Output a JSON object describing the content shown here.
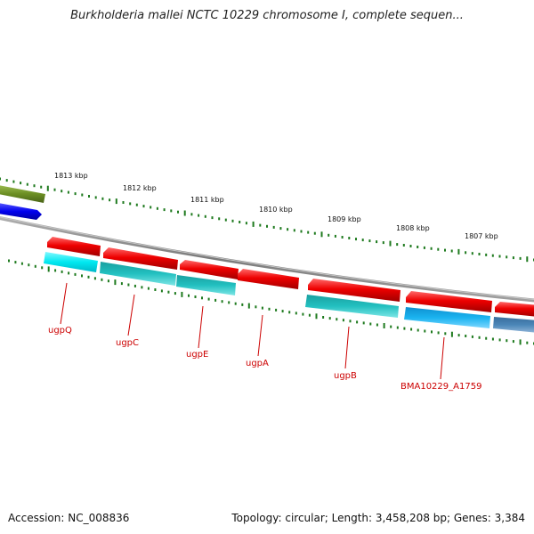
{
  "title": "Burkholderia mallei NCTC 10229 chromosome I, complete sequen...",
  "footer": {
    "accession": "Accession: NC_008836",
    "topology": "Topology: circular; Length: 3,458,208 bp; Genes: 3,384"
  },
  "colors": {
    "backbone": "#7a7a7a",
    "ticks": "#1e7a1e",
    "forward_gene": "#ee0000",
    "reverse_gene": "#00d0d8",
    "reverse_gene_dark": "#20b8b8",
    "reverse_gene_blue": "#1aaee8",
    "reverse_gene_steel": "#4a86b8",
    "offscreen_forward_olive": "#6b8e23",
    "offscreen_forward_blue": "#0000ee",
    "label": "#cc0000"
  },
  "scale": {
    "unit": "kbp",
    "tick_labels": [
      "1813 kbp",
      "1812 kbp",
      "1811 kbp",
      "1810 kbp",
      "1809 kbp",
      "1808 kbp",
      "1807 kbp"
    ]
  },
  "genes": [
    {
      "name": "ugpQ"
    },
    {
      "name": "ugpC"
    },
    {
      "name": "ugpE"
    },
    {
      "name": "ugpA"
    },
    {
      "name": "ugpB"
    },
    {
      "name": "BMA10229_A1759"
    }
  ]
}
